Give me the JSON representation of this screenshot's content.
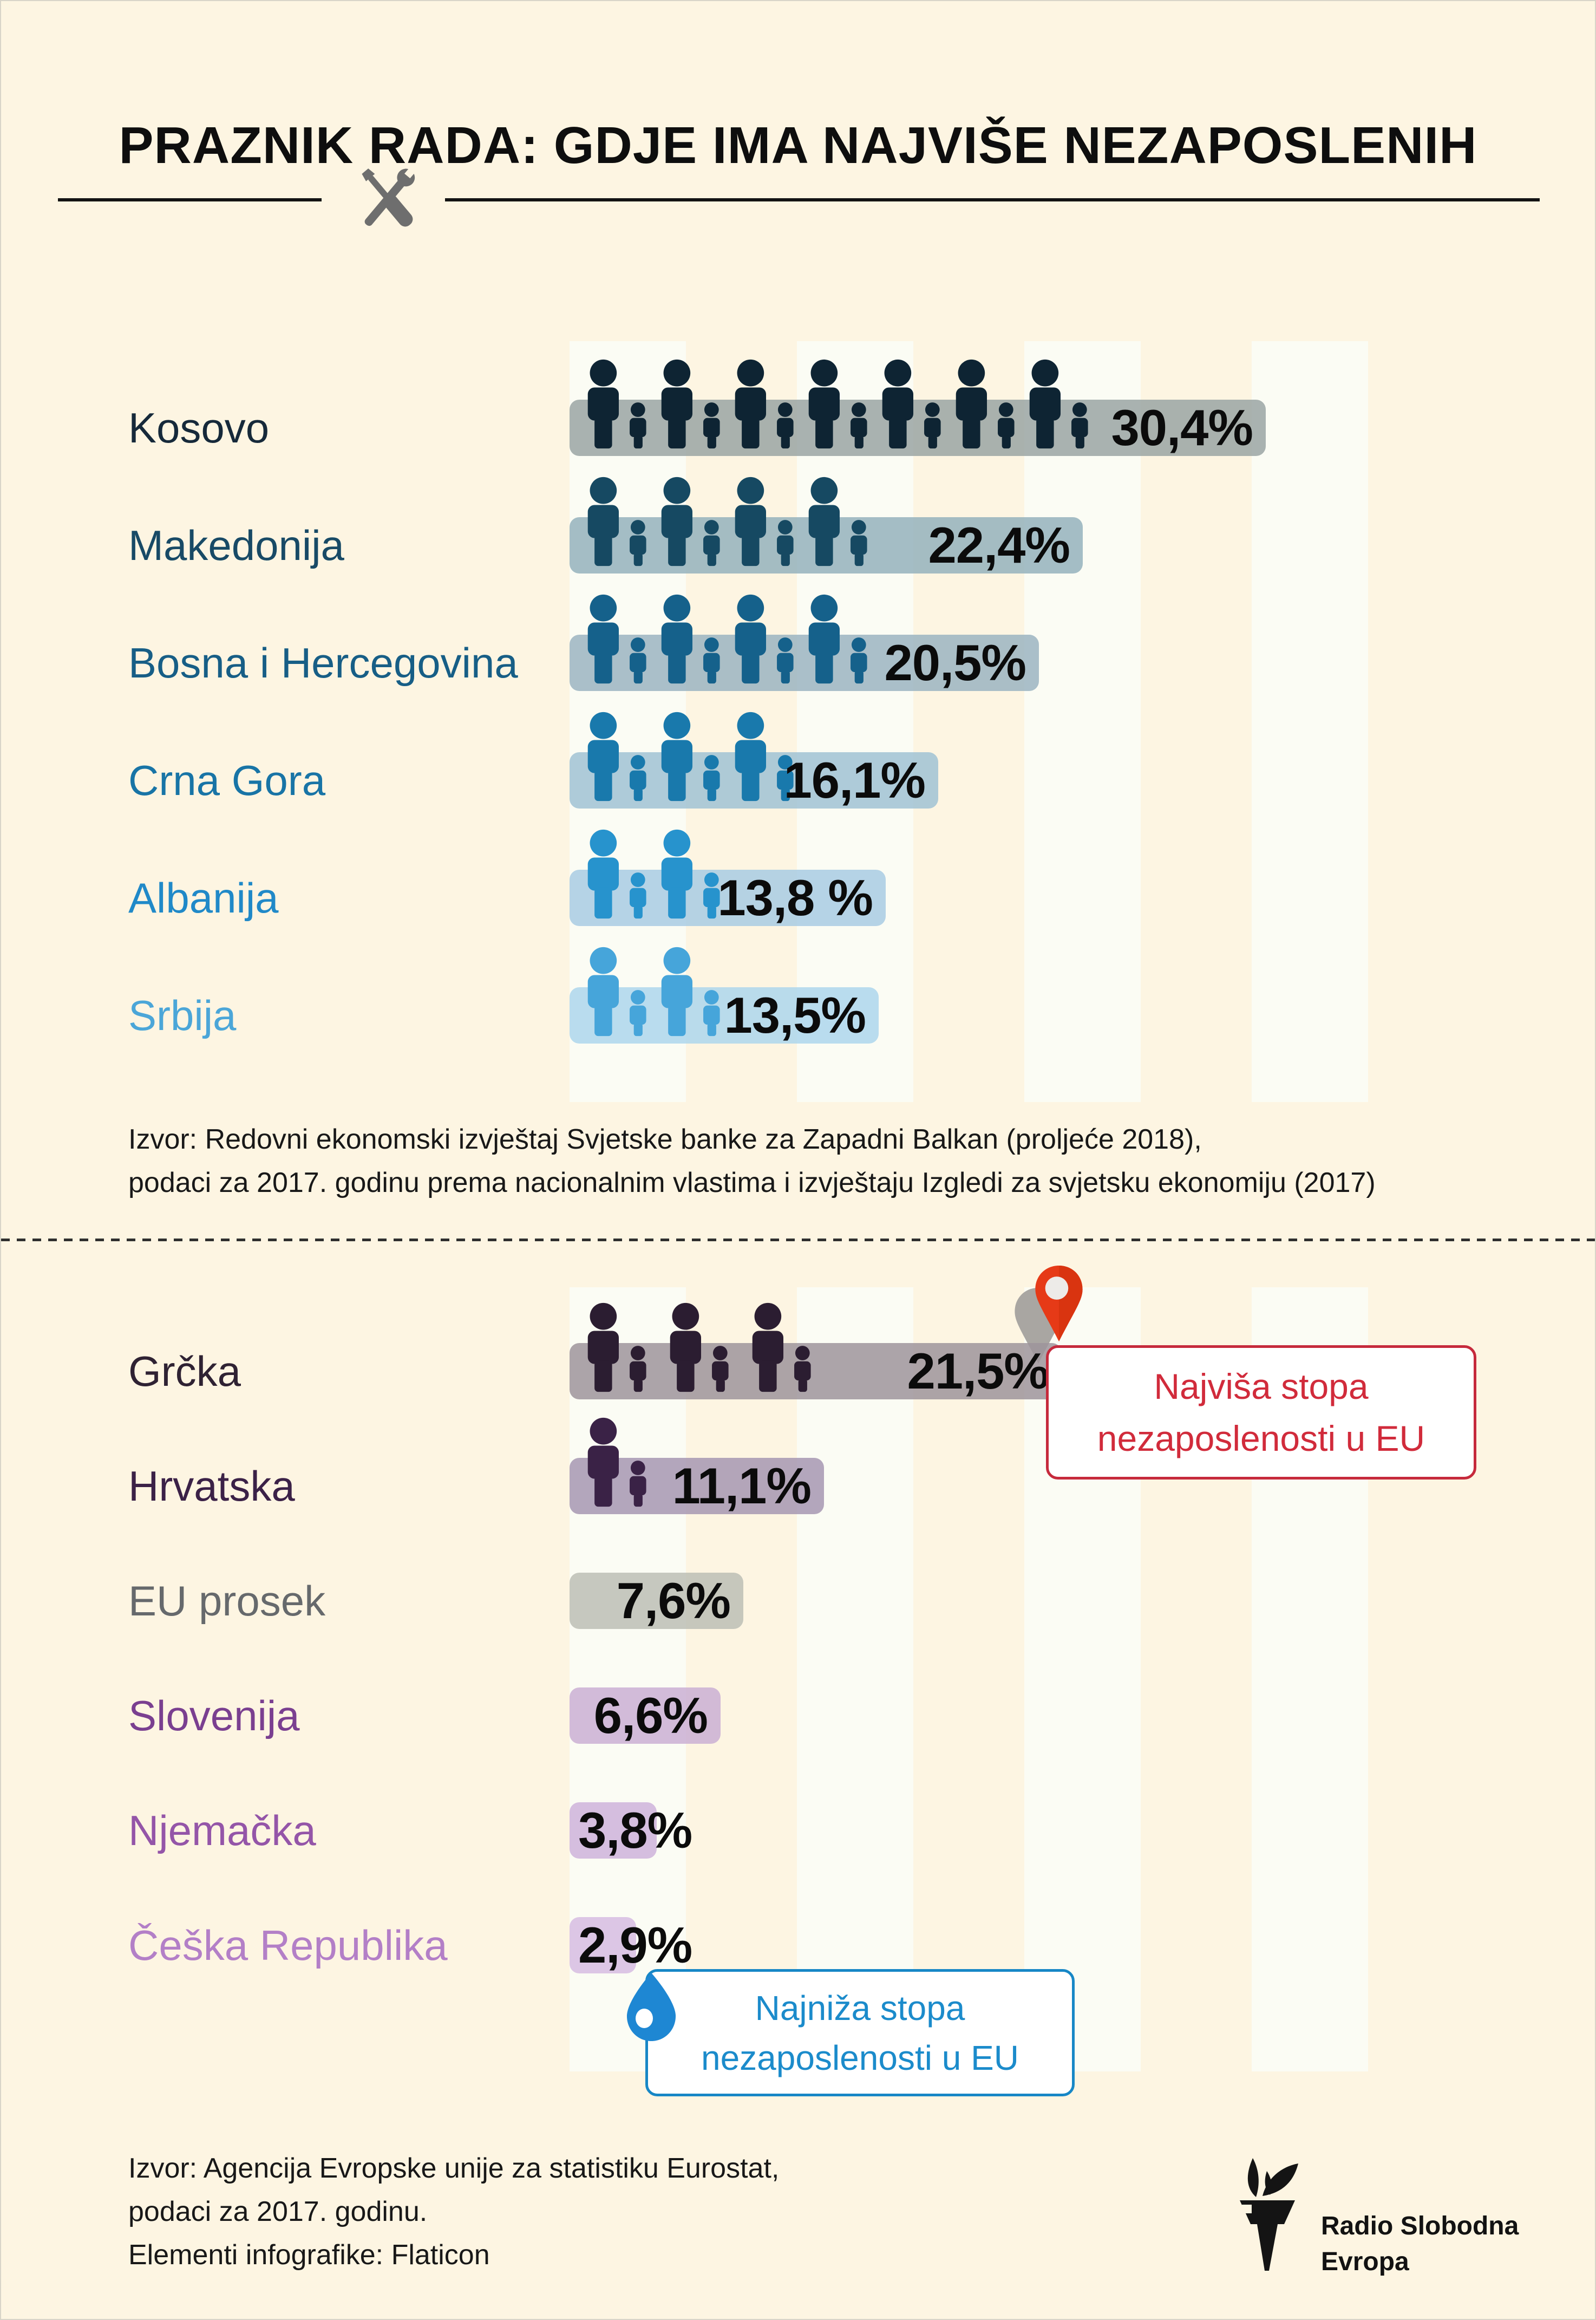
{
  "title": "PRAZNIK RADA: GDJE IMA NAJVIŠE NEZAPOSLENIH",
  "header": {
    "tools_icon": "crossed-wrench-screwdriver-icon",
    "tools_color": "#6E6E6E"
  },
  "background": {
    "canvas_color": "#FDF5E2",
    "stripe_color": "#FBFCF4"
  },
  "charts": [
    {
      "id": "balkan",
      "source_lines": [
        "Izvor: Redovni ekonomski izvještaj Svjetske banke za Zapadni Balkan (proljeće 2018),",
        "podaci za 2017. godinu prema nacionalnim vlastima i izvještaju Izgledi za svjetsku ekonomiju (2017)"
      ],
      "rows": [
        {
          "label": "Kosovo",
          "value": 30.4,
          "value_label": "30,4%",
          "figures": 7,
          "label_color": "#16293A",
          "figure_color": "#0E2433",
          "bar_color": "rgba(154,164,163,0.85)"
        },
        {
          "label": "Makedonija",
          "value": 22.4,
          "value_label": "22,4%",
          "figures": 4,
          "label_color": "#184A66",
          "figure_color": "#164962",
          "bar_color": "rgba(148,177,188,0.85)"
        },
        {
          "label": "Bosna i Hercegovina",
          "value": 20.5,
          "value_label": "20,5%",
          "figures": 4,
          "label_color": "#175E86",
          "figure_color": "#15618B",
          "bar_color": "rgba(155,180,193,0.85)"
        },
        {
          "label": "Crna Gora",
          "value": 16.1,
          "value_label": "16,1%",
          "figures": 3,
          "label_color": "#1874A6",
          "figure_color": "#1979AC",
          "bar_color": "rgba(160,194,212,0.85)"
        },
        {
          "label": "Albanija",
          "value": 13.8,
          "value_label": "13,8 %",
          "figures": 2,
          "label_color": "#2089C8",
          "figure_color": "#2793CD",
          "bar_color": "rgba(168,203,227,0.85)"
        },
        {
          "label": "Srbija",
          "value": 13.5,
          "value_label": "13,5%",
          "figures": 2,
          "label_color": "#4BA6D8",
          "figure_color": "#46A5DA",
          "bar_color": "rgba(173,214,236,0.85)"
        }
      ]
    },
    {
      "id": "eu",
      "rows": [
        {
          "label": "Grčka",
          "value": 21.5,
          "value_label": "21,5%",
          "figures": 3,
          "label_color": "#2F2233",
          "figure_color": "#2B1D31",
          "bar_color": "rgba(158,148,155,0.85)"
        },
        {
          "label": "Hrvatska",
          "value": 11.1,
          "value_label": "11,1%",
          "figures": 1,
          "label_color": "#3B2147",
          "figure_color": "#3A2246",
          "bar_color": "rgba(166,151,178,0.85)"
        },
        {
          "label": "EU prosek",
          "value": 7.6,
          "value_label": "7,6%",
          "figures": 0,
          "label_color": "#66696C",
          "figure_color": "#66696C",
          "bar_color": "rgba(188,190,181,0.85)"
        },
        {
          "label": "Slovenija",
          "value": 6.6,
          "value_label": "6,6%",
          "figures": 0,
          "label_color": "#7A3F90",
          "figure_color": "#7A3F90",
          "bar_color": "rgba(202,175,212,0.85)"
        },
        {
          "label": "Njemačka",
          "value": 3.8,
          "value_label": "3,8%",
          "figures": 0,
          "label_color": "#9455A8",
          "figure_color": "#9455A8",
          "bar_color": "rgba(206,179,219,0.85)"
        },
        {
          "label": "Češka Republika",
          "value": 2.9,
          "value_label": "2,9%",
          "figures": 0,
          "label_color": "#B37FC7",
          "figure_color": "#B37FC7",
          "bar_color": "rgba(214,188,226,0.85)"
        }
      ]
    }
  ],
  "callouts": {
    "highest": {
      "icon": "map-pin-icon",
      "icon_color": "#E63A17",
      "lines": [
        "Najviša stopa",
        "nezaposlenosti u EU"
      ],
      "text_color": "#D12B3B",
      "border_color": "#C62A3C"
    },
    "lowest": {
      "icon": "water-drop-icon",
      "icon_color": "#1E87D3",
      "lines": [
        "Najniža stopa",
        "nezaposlenosti u EU"
      ],
      "text_color": "#1B8BCB",
      "border_color": "#1787C6"
    }
  },
  "footer": {
    "source_lines": [
      "Izvor: Agencija Evropske unije za statistiku Eurostat,",
      "podaci za 2017. godinu.",
      "Elementi infografike: Flaticon"
    ],
    "logo": {
      "icon": "torch-icon",
      "lines": [
        "Radio Slobodna",
        "Evropa"
      ]
    }
  },
  "chart_data": [
    {
      "type": "bar",
      "orientation": "horizontal",
      "title": "PRAZNIK RADA: GDJE IMA NAJVIŠE NEZAPOSLENIH",
      "categories": [
        "Kosovo",
        "Makedonija",
        "Bosna i Hercegovina",
        "Crna Gora",
        "Albanija",
        "Srbija"
      ],
      "values": [
        30.4,
        22.4,
        20.5,
        16.1,
        13.8,
        13.5
      ],
      "value_labels": [
        "30,4%",
        "22,4%",
        "20,5%",
        "16,1%",
        "13,8 %",
        "13,5%"
      ],
      "person_icon_counts": [
        7,
        4,
        4,
        3,
        2,
        2
      ],
      "unit": "%",
      "xlim": [
        0,
        31
      ],
      "grid": false,
      "legend": false,
      "source": "Izvor: Redovni ekonomski izvještaj Svjetske banke za Zapadni Balkan (proljeće 2018), podaci za 2017. godinu prema nacionalnim vlastima i izvještaju Izgledi za svjetsku ekonomiju (2017)"
    },
    {
      "type": "bar",
      "orientation": "horizontal",
      "categories": [
        "Grčka",
        "Hrvatska",
        "EU prosek",
        "Slovenija",
        "Njemačka",
        "Češka Republika"
      ],
      "values": [
        21.5,
        11.1,
        7.6,
        6.6,
        3.8,
        2.9
      ],
      "value_labels": [
        "21,5%",
        "11,1%",
        "7,6%",
        "6,6%",
        "3,8%",
        "2,9%"
      ],
      "person_icon_counts": [
        3,
        1,
        0,
        0,
        0,
        0
      ],
      "unit": "%",
      "xlim": [
        0,
        31
      ],
      "grid": false,
      "legend": false,
      "annotations": [
        {
          "target": "Grčka",
          "text": "Najviša stopa nezaposlenosti u EU",
          "icon": "map-pin-icon"
        },
        {
          "target": "Češka Republika",
          "text": "Najniža stopa nezaposlenosti u EU",
          "icon": "water-drop-icon"
        }
      ],
      "source": "Izvor: Agencija Evropske unije za statistiku Eurostat, podaci za 2017. godinu."
    }
  ]
}
